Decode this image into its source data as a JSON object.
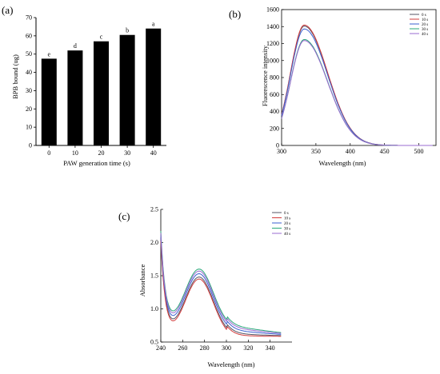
{
  "chart_data": [
    {
      "panel": "(a)",
      "type": "bar",
      "xlabel": "PAW generation time (s)",
      "ylabel": "BPB bound (ug)",
      "categories": [
        "0",
        "10",
        "20",
        "30",
        "40"
      ],
      "values": [
        47.5,
        52,
        57,
        60.5,
        64
      ],
      "letters": [
        "e",
        "d",
        "c",
        "b",
        "a"
      ],
      "ylim": [
        0,
        70
      ],
      "yticks": [
        0,
        10,
        20,
        30,
        40,
        50,
        60,
        70
      ],
      "color": "#000000"
    },
    {
      "panel": "(b)",
      "type": "line",
      "xlabel": "Wavelength (nm)",
      "ylabel": "Fluorescence intensity",
      "xlim": [
        300,
        525
      ],
      "ylim": [
        0,
        1600
      ],
      "xticks": [
        300,
        350,
        400,
        450,
        500
      ],
      "yticks": [
        0,
        200,
        400,
        600,
        800,
        1000,
        1200,
        1400,
        1600
      ],
      "legend_position": "top-right",
      "series": [
        {
          "name": "0 s",
          "color": "#555566",
          "peak": 1405
        },
        {
          "name": "10 s",
          "color": "#d23c3c",
          "peak": 1418
        },
        {
          "name": "20 s",
          "color": "#3a5fd0",
          "peak": 1372
        },
        {
          "name": "30 s",
          "color": "#2aa87a",
          "peak": 1248
        },
        {
          "name": "40 s",
          "color": "#9a6bd0",
          "peak": 1235
        }
      ],
      "peak_wavelength": 333
    },
    {
      "panel": "(c)",
      "type": "line",
      "xlabel": "Wavelength (nm)",
      "ylabel": "Absorbance",
      "xlim": [
        240,
        360
      ],
      "ylim": [
        0.5,
        2.5
      ],
      "xticks": [
        240,
        260,
        280,
        300,
        320,
        340
      ],
      "yticks": [
        0.5,
        1.0,
        1.5,
        2.0,
        2.5
      ],
      "legend_position": "top-right",
      "series": [
        {
          "name": "0 s",
          "color": "#555566",
          "offset": 0.0
        },
        {
          "name": "10 s",
          "color": "#d23c3c",
          "offset": -0.03
        },
        {
          "name": "20 s",
          "color": "#3a5fd0",
          "offset": 0.05
        },
        {
          "name": "30 s",
          "color": "#2aa87a",
          "offset": 0.12
        },
        {
          "name": "40 s",
          "color": "#9a6bd0",
          "offset": 0.09
        }
      ]
    }
  ]
}
